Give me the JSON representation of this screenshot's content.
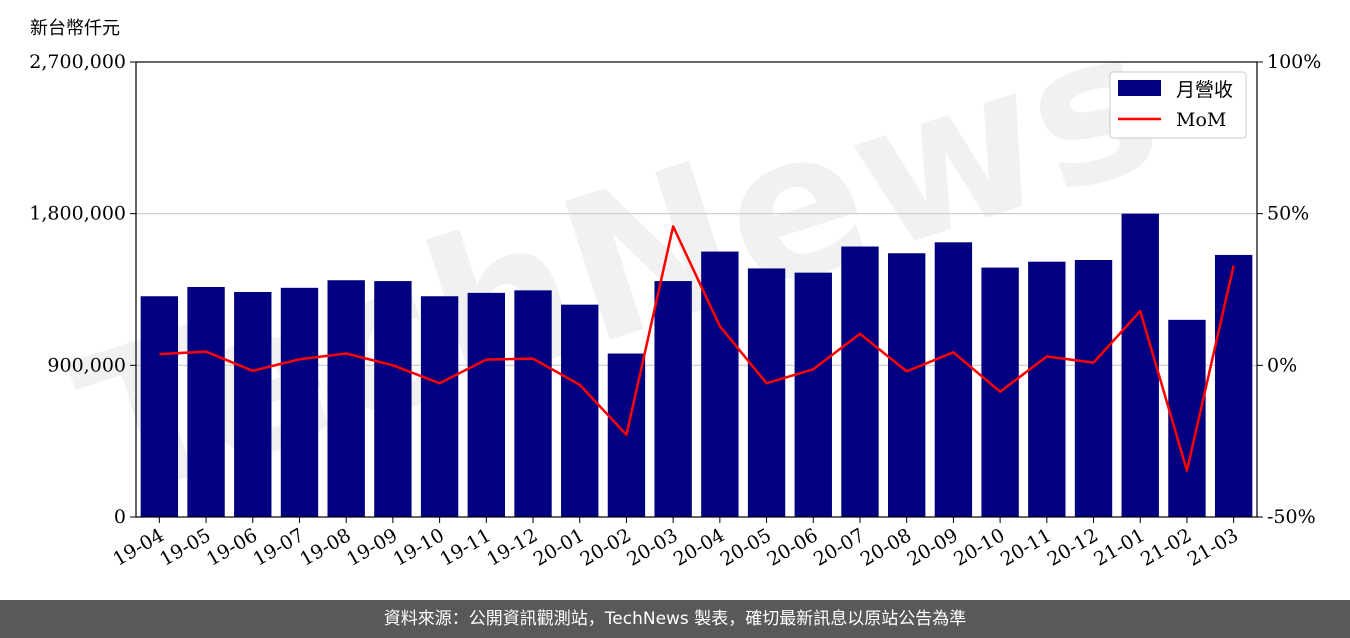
{
  "chart_data": {
    "type": "bar+line",
    "ylabel_left": "新台幣仟元",
    "categories": [
      "19-04",
      "19-05",
      "19-06",
      "19-07",
      "19-08",
      "19-09",
      "19-10",
      "19-11",
      "19-12",
      "20-01",
      "20-02",
      "20-03",
      "20-04",
      "20-05",
      "20-06",
      "20-07",
      "20-08",
      "20-09",
      "20-10",
      "20-11",
      "20-12",
      "21-01",
      "21-02",
      "21-03"
    ],
    "series": [
      {
        "name": "月營收",
        "axis": "left",
        "kind": "bar",
        "color": "#000080",
        "values": [
          1310000,
          1365000,
          1335000,
          1360000,
          1405000,
          1400000,
          1310000,
          1330000,
          1345000,
          1260000,
          970000,
          1400000,
          1575000,
          1475000,
          1450000,
          1605000,
          1565000,
          1630000,
          1480000,
          1515000,
          1525000,
          1800000,
          1170000,
          1555000
        ]
      },
      {
        "name": "MoM",
        "axis": "right",
        "kind": "line",
        "color": "#ff0000",
        "values": [
          3.7,
          4.5,
          -1.8,
          2.0,
          3.9,
          0.0,
          -5.9,
          1.9,
          2.2,
          -6.4,
          -22.9,
          45.8,
          12.9,
          -5.9,
          -1.3,
          10.4,
          -2.0,
          4.3,
          -8.7,
          2.9,
          0.9,
          17.9,
          -34.7,
          32.9
        ]
      }
    ],
    "ylim_left": [
      0,
      2700000
    ],
    "ylim_right": [
      -50,
      100
    ],
    "yticks_left": [
      "0",
      "900,000",
      "1,800,000",
      "2,700,000"
    ],
    "yticks_right": [
      "-50%",
      "0%",
      "50%",
      "100%"
    ],
    "grid": "horizontal",
    "legend": "top-right"
  },
  "watermark_text": "TechNews",
  "footer": {
    "text": "資料來源：公開資訊觀測站，TechNews 製表，確切最新訊息以原站公告為準"
  }
}
